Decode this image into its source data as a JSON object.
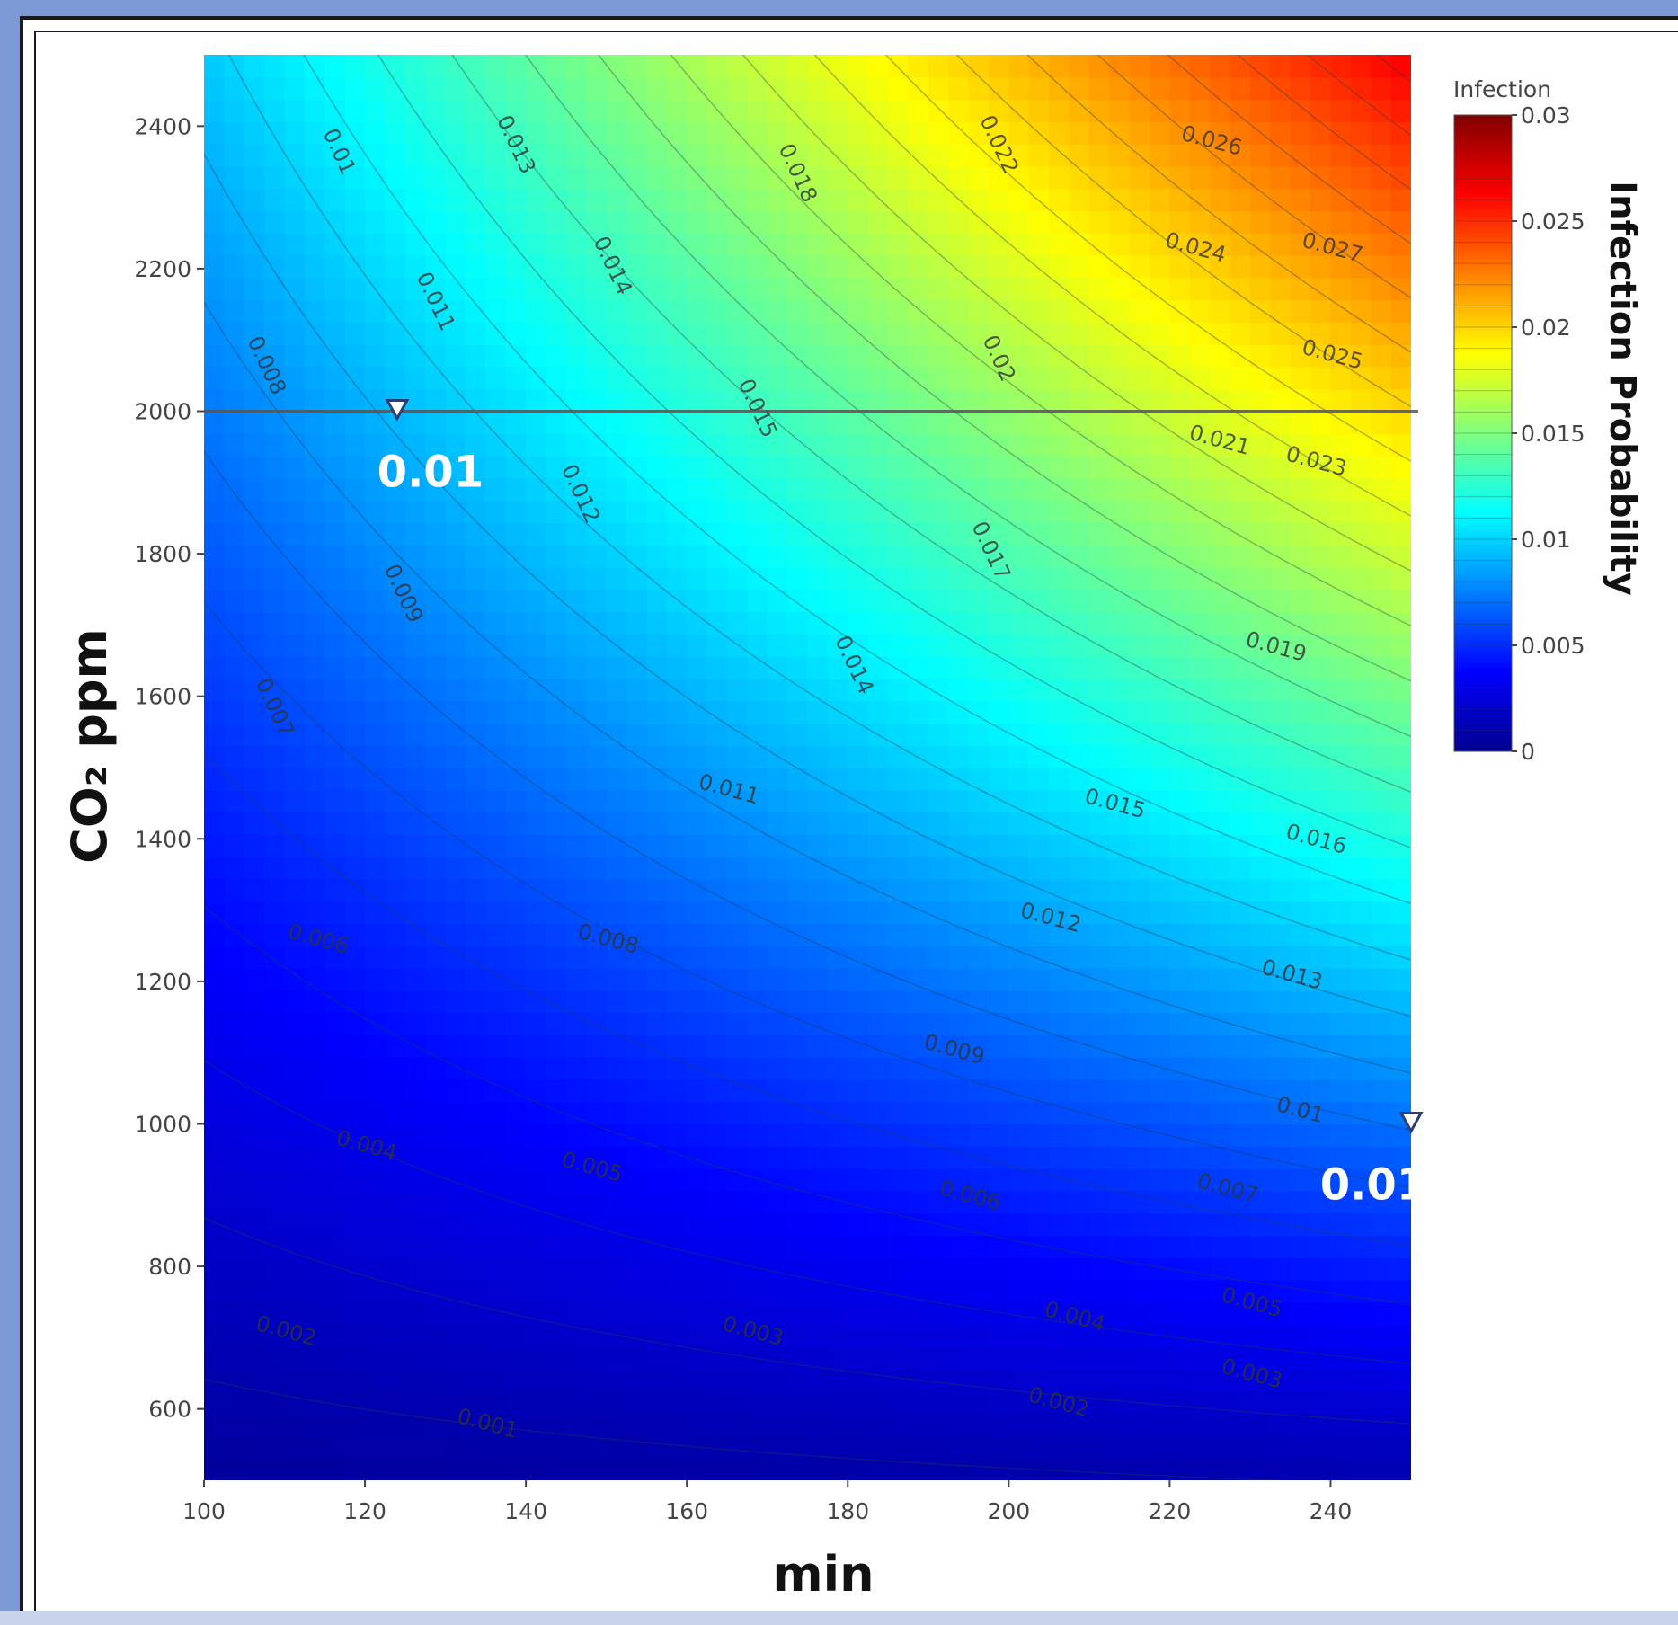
{
  "chart_data": {
    "type": "heatmap",
    "subtype": "contour",
    "xlabel": "min",
    "ylabel": "CO₂ ppm",
    "xlim": [
      100,
      250
    ],
    "ylim": [
      500,
      2500
    ],
    "x_ticks": [
      100,
      120,
      140,
      160,
      180,
      200,
      220,
      240
    ],
    "y_ticks": [
      600,
      800,
      1000,
      1200,
      1400,
      1600,
      1800,
      2000,
      2200,
      2400
    ],
    "colorscale": "jet",
    "colorbar": {
      "title": "Infection",
      "side_title": "Infection Probability",
      "range": [
        0,
        0.03
      ],
      "ticks": [
        {
          "value": 0.03,
          "label": "0.03"
        },
        {
          "value": 0.025,
          "label": "0.025"
        },
        {
          "value": 0.02,
          "label": "0.02"
        },
        {
          "value": 0.015,
          "label": "0.015"
        },
        {
          "value": 0.01,
          "label": "0.01"
        },
        {
          "value": 0.005,
          "label": "0.005"
        },
        {
          "value": 0,
          "label": "0"
        }
      ]
    },
    "contour_levels": [
      0.001,
      0.002,
      0.003,
      0.004,
      0.005,
      0.006,
      0.007,
      0.008,
      0.009,
      0.01,
      0.011,
      0.012,
      0.013,
      0.014,
      0.015,
      0.016,
      0.017,
      0.018,
      0.019,
      0.02,
      0.021,
      0.022,
      0.023,
      0.024,
      0.025,
      0.026,
      0.027
    ],
    "contour_labels": [
      {
        "x": 135,
        "y": 570,
        "text": "0.001"
      },
      {
        "x": 110,
        "y": 700,
        "text": "0.002"
      },
      {
        "x": 168,
        "y": 700,
        "text": "0.003"
      },
      {
        "x": 230,
        "y": 640,
        "text": "0.003"
      },
      {
        "x": 120,
        "y": 960,
        "text": "0.004"
      },
      {
        "x": 148,
        "y": 930,
        "text": "0.005"
      },
      {
        "x": 208,
        "y": 720,
        "text": "0.004"
      },
      {
        "x": 206,
        "y": 600,
        "text": "0.002"
      },
      {
        "x": 230,
        "y": 740,
        "text": "0.005"
      },
      {
        "x": 227,
        "y": 900,
        "text": "0.007"
      },
      {
        "x": 150,
        "y": 1250,
        "text": "0.008"
      },
      {
        "x": 193,
        "y": 1095,
        "text": "0.009"
      },
      {
        "x": 236,
        "y": 1010,
        "text": "0.01"
      },
      {
        "x": 165,
        "y": 1460,
        "text": "0.011"
      },
      {
        "x": 205,
        "y": 1280,
        "text": "0.012"
      },
      {
        "x": 235,
        "y": 1200,
        "text": "0.013"
      },
      {
        "x": 180,
        "y": 1640,
        "text": "0.014"
      },
      {
        "x": 213,
        "y": 1440,
        "text": "0.015"
      },
      {
        "x": 238,
        "y": 1390,
        "text": "0.016"
      },
      {
        "x": 197,
        "y": 1800,
        "text": "0.017"
      },
      {
        "x": 233,
        "y": 1660,
        "text": "0.019"
      },
      {
        "x": 226,
        "y": 1950,
        "text": "0.021"
      },
      {
        "x": 238,
        "y": 1920,
        "text": "0.023"
      },
      {
        "x": 124,
        "y": 1740,
        "text": "0.009"
      },
      {
        "x": 107,
        "y": 2060,
        "text": "0.008"
      },
      {
        "x": 128,
        "y": 2150,
        "text": "0.011"
      },
      {
        "x": 146,
        "y": 1880,
        "text": "0.012"
      },
      {
        "x": 168,
        "y": 2000,
        "text": "0.015"
      },
      {
        "x": 116,
        "y": 2360,
        "text": "0.01"
      },
      {
        "x": 138,
        "y": 2370,
        "text": "0.013"
      },
      {
        "x": 150,
        "y": 2200,
        "text": "0.014"
      },
      {
        "x": 173,
        "y": 2330,
        "text": "0.018"
      },
      {
        "x": 198,
        "y": 2070,
        "text": "0.02"
      },
      {
        "x": 198,
        "y": 2370,
        "text": "0.022"
      },
      {
        "x": 223,
        "y": 2220,
        "text": "0.024"
      },
      {
        "x": 225,
        "y": 2370,
        "text": "0.026"
      },
      {
        "x": 240,
        "y": 2220,
        "text": "0.027"
      },
      {
        "x": 240,
        "y": 2070,
        "text": "0.025"
      },
      {
        "x": 108,
        "y": 1580,
        "text": "0.007"
      },
      {
        "x": 114,
        "y": 1250,
        "text": "0.006"
      },
      {
        "x": 195,
        "y": 890,
        "text": "0.006"
      }
    ],
    "reference_line": {
      "y": 2000
    },
    "markers": [
      {
        "x": 124,
        "y": 2000,
        "label": "0.01"
      },
      {
        "x": 250,
        "y": 1000,
        "label": "0.01"
      }
    ]
  }
}
